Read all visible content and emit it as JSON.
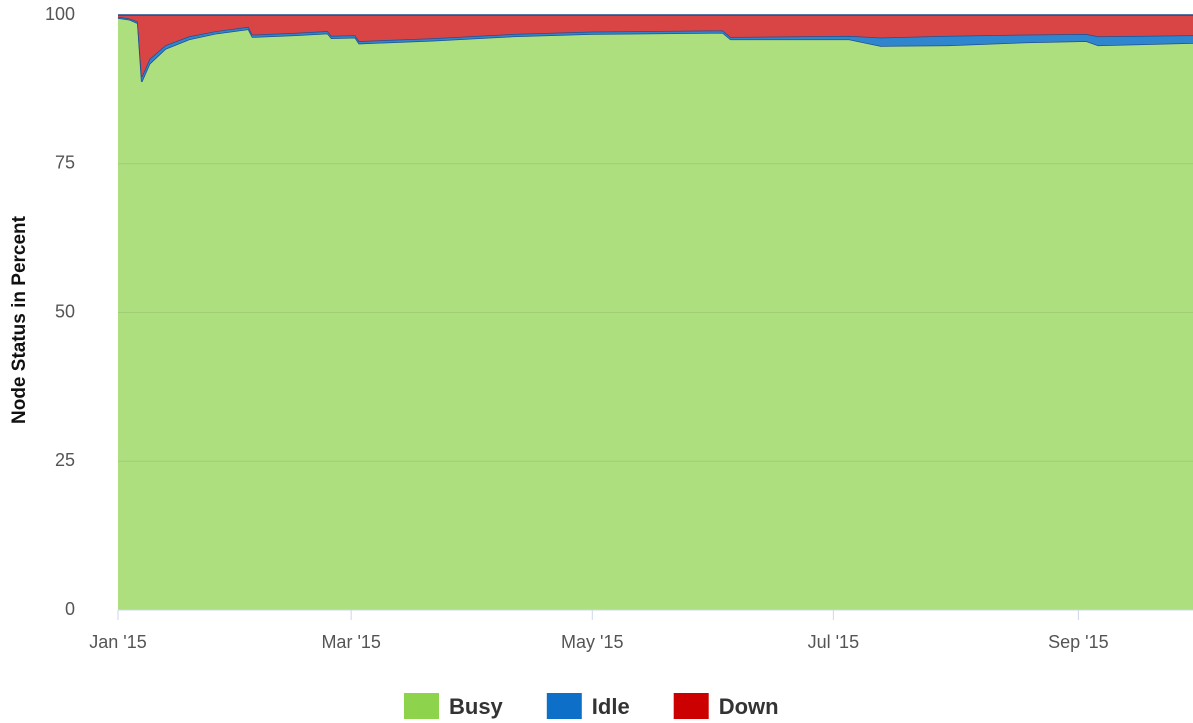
{
  "chart_data": {
    "type": "stacked_area",
    "y_axis_label": "Node Status in Percent",
    "x": [
      0,
      3,
      5,
      6,
      8,
      12,
      18,
      25,
      33,
      34,
      45,
      53,
      54,
      60,
      61,
      80,
      100,
      120,
      150,
      153,
      155,
      185,
      193,
      210,
      230,
      245,
      248,
      272
    ],
    "series": [
      {
        "name": "Busy",
        "color": "#aedf7f",
        "legend_color": "#8dd44c",
        "values": [
          99.5,
          99.2,
          98.6,
          88.8,
          91.8,
          94.3,
          95.9,
          96.9,
          97.6,
          96.3,
          96.6,
          96.9,
          96.1,
          96.2,
          95.2,
          95.7,
          96.4,
          96.8,
          97.0,
          97.0,
          95.9,
          95.9,
          94.8,
          94.9,
          95.4,
          95.6,
          94.9,
          95.3
        ]
      },
      {
        "name": "Idle",
        "color": "#2f86cf",
        "legend_color": "#0d6fc7",
        "values": [
          0.2,
          0.2,
          0.3,
          0.8,
          0.8,
          0.6,
          0.5,
          0.4,
          0.4,
          0.4,
          0.4,
          0.4,
          0.4,
          0.4,
          0.4,
          0.4,
          0.4,
          0.4,
          0.4,
          0.4,
          0.4,
          0.6,
          1.4,
          1.6,
          1.3,
          1.2,
          1.5,
          1.3
        ]
      },
      {
        "name": "Down",
        "color": "#d94545",
        "legend_color": "#cc0000",
        "values": [
          0.3,
          0.6,
          1.1,
          10.4,
          7.4,
          5.1,
          3.6,
          2.7,
          2.0,
          3.3,
          3.0,
          2.7,
          3.5,
          3.4,
          4.4,
          3.9,
          3.2,
          2.8,
          2.6,
          2.6,
          3.7,
          3.5,
          3.8,
          3.5,
          3.3,
          3.2,
          3.6,
          3.4
        ]
      }
    ],
    "xlim": [
      0,
      272
    ],
    "xticks": [
      {
        "value": 0,
        "label": "Jan '15"
      },
      {
        "value": 59,
        "label": "Mar '15"
      },
      {
        "value": 120,
        "label": "May '15"
      },
      {
        "value": 181,
        "label": "Jul '15"
      },
      {
        "value": 243,
        "label": "Sep '15"
      }
    ],
    "ylim": [
      0,
      100
    ],
    "yticks": [
      0,
      25,
      50,
      75,
      100
    ],
    "grid": true,
    "legend": "bottom"
  }
}
